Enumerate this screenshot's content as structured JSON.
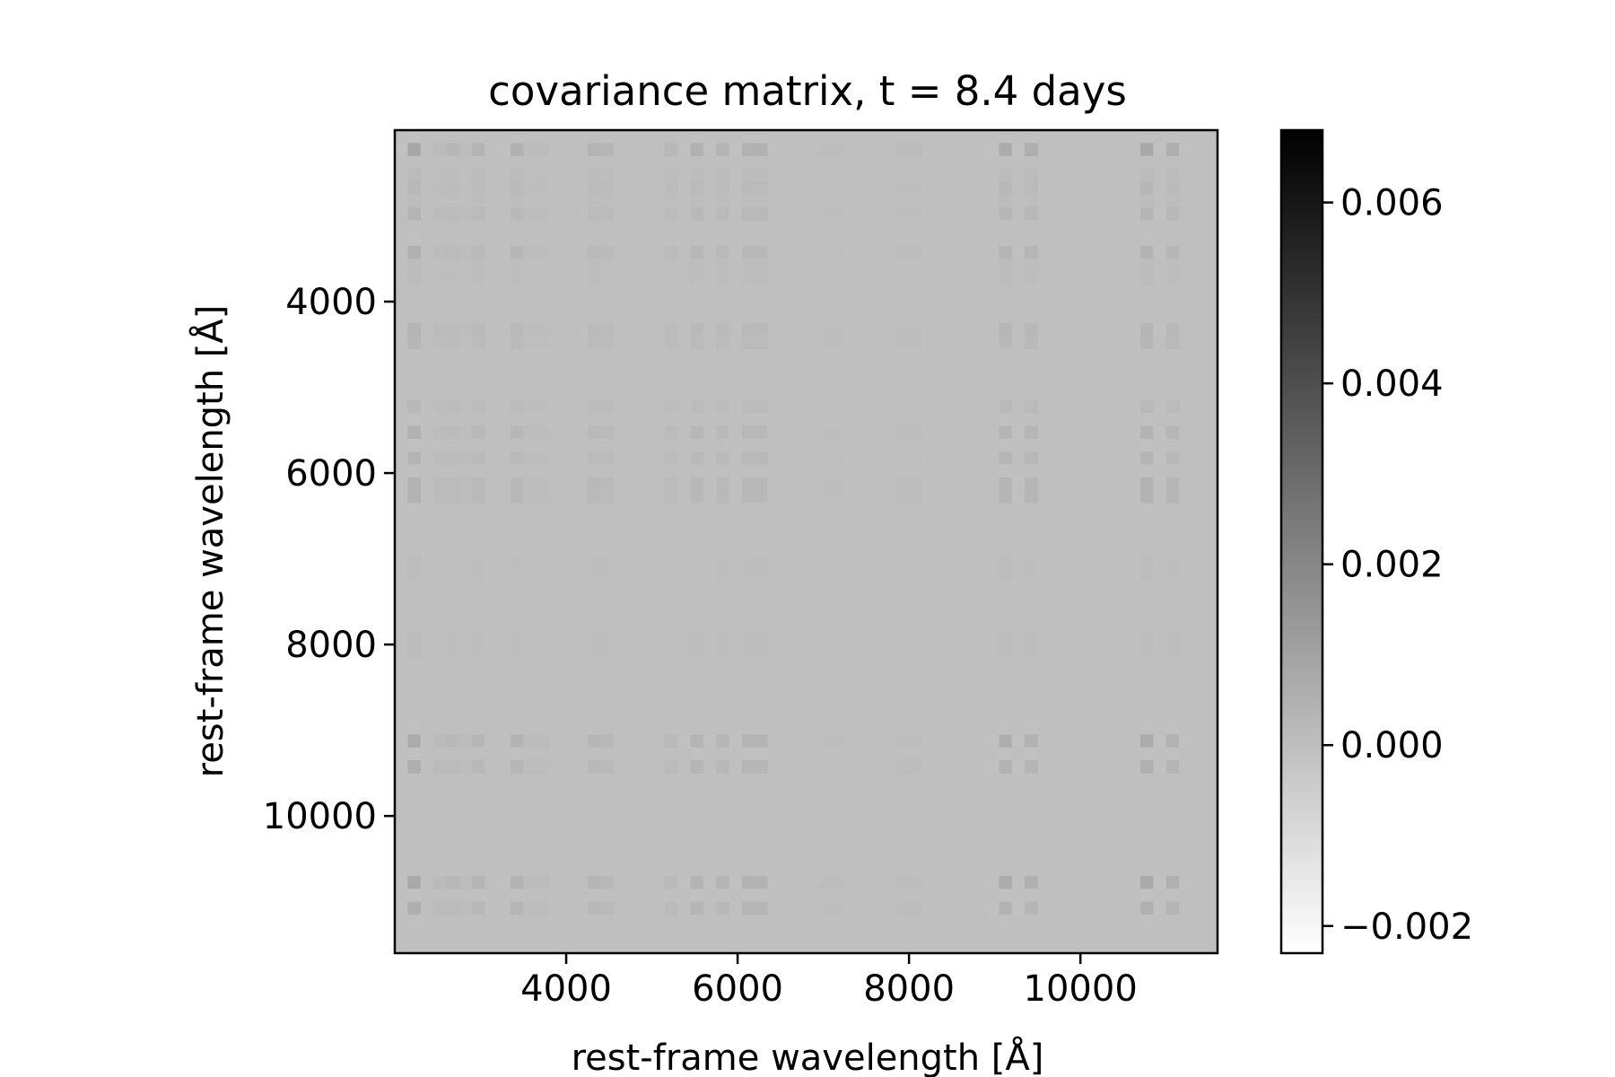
{
  "chart_data": {
    "type": "heatmap",
    "title": "covariance matrix, t = 8.4 days",
    "xlabel": "rest-frame wavelength [Å]",
    "ylabel": "rest-frame wavelength [Å]",
    "colormap": "gray_r",
    "xlim": [
      2000,
      11600
    ],
    "ylim": [
      11600,
      2000
    ],
    "x_ticks": [
      4000,
      6000,
      8000,
      10000
    ],
    "y_ticks": [
      4000,
      6000,
      8000,
      10000
    ],
    "x_tick_labels": [
      "4000",
      "6000",
      "8000",
      "10000"
    ],
    "y_tick_labels": [
      "4000",
      "6000",
      "8000",
      "10000"
    ],
    "colorbar": {
      "range": [
        -0.0023,
        0.0068
      ],
      "ticks": [
        -0.002,
        0.0,
        0.002,
        0.004,
        0.006
      ],
      "tick_labels": [
        "−0.002",
        "0.000",
        "0.002",
        "0.004",
        "0.006"
      ]
    },
    "background_value": 0.0,
    "features": [
      {
        "wavelength": 2200,
        "strength": 0.55
      },
      {
        "wavelength": 2600,
        "strength": 0.6
      },
      {
        "wavelength": 2750,
        "strength": 0.35
      },
      {
        "wavelength": 3000,
        "strength": 0.25
      },
      {
        "wavelength": 3400,
        "strength": 0.3
      },
      {
        "wavelength": 3650,
        "strength": 0.35
      },
      {
        "wavelength": 4300,
        "strength": 0.25
      },
      {
        "wavelength": 4500,
        "strength": 0.2
      },
      {
        "wavelength": 5200,
        "strength": 0.15
      },
      {
        "wavelength": 5500,
        "strength": 0.3
      },
      {
        "wavelength": 5800,
        "strength": 0.25
      },
      {
        "wavelength": 6100,
        "strength": 0.3
      },
      {
        "wavelength": 6300,
        "strength": 0.3
      },
      {
        "wavelength": 7100,
        "strength": 0.2
      },
      {
        "wavelength": 8000,
        "strength": 0.25
      },
      {
        "wavelength": 9100,
        "strength": 0.45
      },
      {
        "wavelength": 9400,
        "strength": 0.35
      },
      {
        "wavelength": 10800,
        "strength": 0.5
      },
      {
        "wavelength": 11100,
        "strength": 0.35
      }
    ]
  }
}
